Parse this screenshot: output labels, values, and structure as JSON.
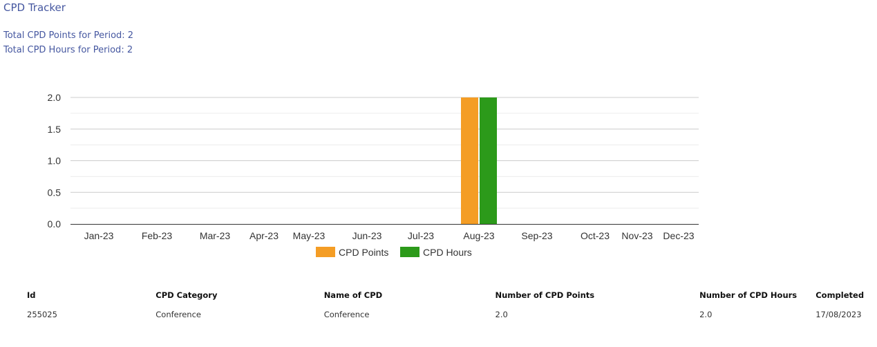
{
  "page": {
    "title": "CPD Tracker",
    "total_points_label": "Total CPD Points for Period: 2",
    "total_hours_label": "Total CPD Hours for Period: 2"
  },
  "colors": {
    "points": "#f49d25",
    "hours": "#2c9a1a",
    "header_text": "#4557a0"
  },
  "chart_data": {
    "type": "bar",
    "categories": [
      "Jan-23",
      "Feb-23",
      "Mar-23",
      "Apr-23",
      "May-23",
      "Jun-23",
      "Jul-23",
      "Aug-23",
      "Sep-23",
      "Oct-23",
      "Nov-23",
      "Dec-23"
    ],
    "series": [
      {
        "name": "CPD Points",
        "values": [
          0,
          0,
          0,
          0,
          0,
          0,
          0,
          2,
          0,
          0,
          0,
          0
        ]
      },
      {
        "name": "CPD Hours",
        "values": [
          0,
          0,
          0,
          0,
          0,
          0,
          0,
          2,
          0,
          0,
          0,
          0
        ]
      }
    ],
    "ylim": [
      0,
      2
    ],
    "yticks": [
      "0.0",
      "0.5",
      "1.0",
      "1.5",
      "2.0"
    ],
    "grid": true,
    "legend_position": "bottom"
  },
  "table": {
    "headers": [
      "Id",
      "CPD Category",
      "Name of CPD",
      "Number of CPD Points",
      "Number of CPD Hours",
      "Completed"
    ],
    "rows": [
      [
        "255025",
        "Conference",
        "Conference",
        "2.0",
        "2.0",
        "17/08/2023"
      ]
    ]
  }
}
